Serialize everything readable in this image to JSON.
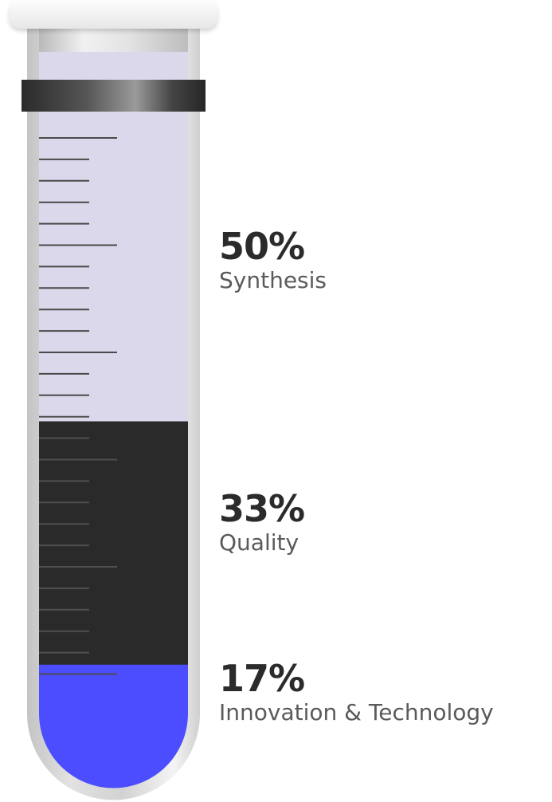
{
  "chart_data": {
    "type": "stacked-bar",
    "orientation": "vertical",
    "segments_bottom_to_top": [
      {
        "name": "Innovation & Technology",
        "value": 17,
        "value_label": "17%",
        "color": "#4b4dff"
      },
      {
        "name": "Quality",
        "value": 33,
        "value_label": "33%",
        "color": "#2a2a2a"
      },
      {
        "name": "Synthesis",
        "value": 50,
        "value_label": "50%",
        "color": "#dad8ea"
      }
    ],
    "total": 100,
    "unit": "%",
    "grid": false,
    "legend": "right-labels"
  }
}
